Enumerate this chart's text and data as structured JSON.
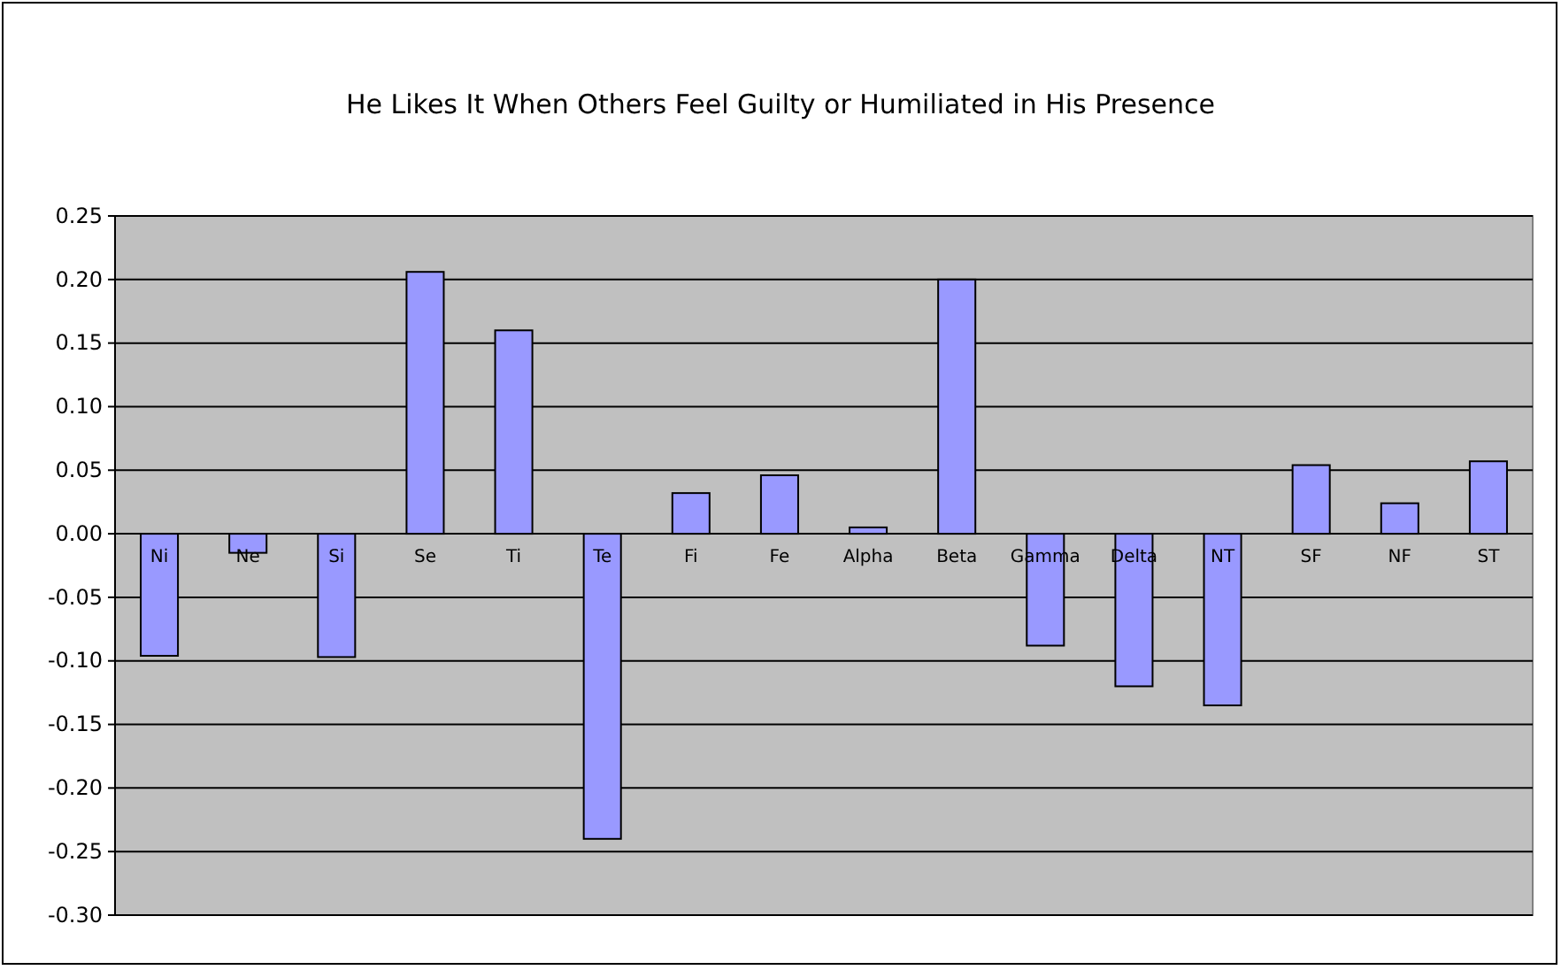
{
  "chart_data": {
    "type": "bar",
    "title": "He Likes It When Others Feel Guilty or Humiliated in His Presence",
    "categories": [
      "Ni",
      "Ne",
      "Si",
      "Se",
      "Ti",
      "Te",
      "Fi",
      "Fe",
      "Alpha",
      "Beta",
      "Gamma",
      "Delta",
      "NT",
      "SF",
      "NF",
      "ST"
    ],
    "values": [
      -0.096,
      -0.015,
      -0.097,
      0.206,
      0.16,
      -0.24,
      0.032,
      0.046,
      0.005,
      0.2,
      -0.088,
      -0.12,
      -0.135,
      0.054,
      0.024,
      0.057
    ],
    "color": "#9999ff",
    "ylim": [
      -0.3,
      0.25
    ],
    "yticks": [
      {
        "value": -0.3,
        "label": "-0.30"
      },
      {
        "value": -0.25,
        "label": "-0.25"
      },
      {
        "value": -0.2,
        "label": "-0.20"
      },
      {
        "value": -0.15,
        "label": "-0.15"
      },
      {
        "value": -0.1,
        "label": "-0.10"
      },
      {
        "value": -0.05,
        "label": "-0.05"
      },
      {
        "value": 0,
        "label": "0.00"
      },
      {
        "value": 0.05,
        "label": "0.05"
      },
      {
        "value": 0.1,
        "label": "0.10"
      },
      {
        "value": 0.15,
        "label": "0.15"
      },
      {
        "value": 0.2,
        "label": "0.20"
      },
      {
        "value": 0.25,
        "label": "0.25"
      }
    ],
    "grid": "y"
  }
}
